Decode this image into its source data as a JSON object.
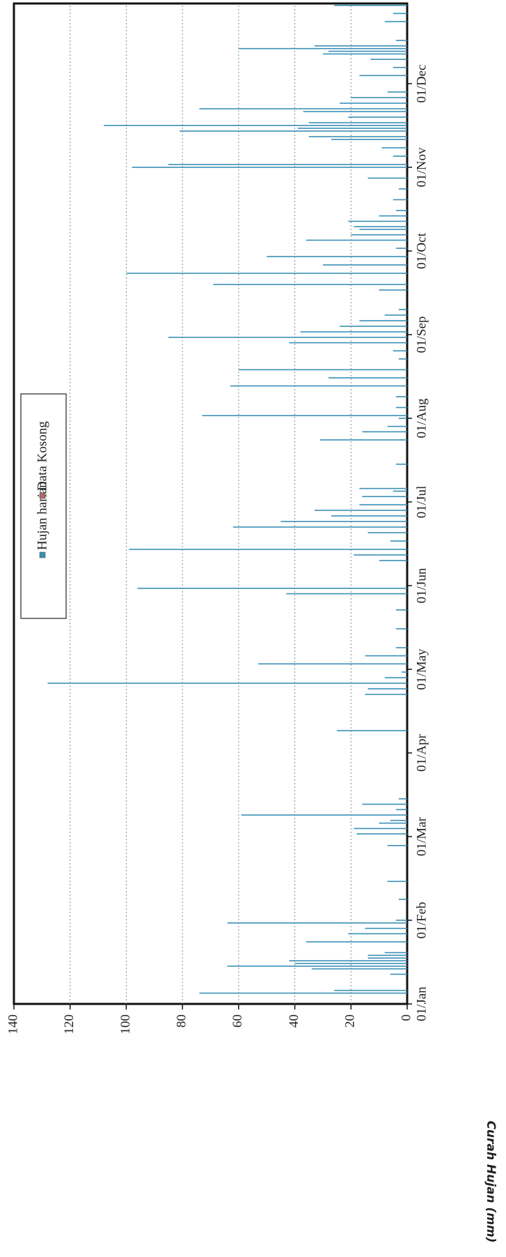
{
  "chart_data": {
    "type": "bar",
    "y_label": "Curah Hujan (mm)",
    "x": [
      "05/Jan",
      "06/Jan",
      "12/Jan",
      "14/Jan",
      "15/Jan",
      "16/Jan",
      "17/Jan",
      "18/Jan",
      "19/Jan",
      "20/Jan",
      "24/Jan",
      "27/Jan",
      "29/Jan",
      "31/Jan",
      "01/Feb",
      "08/Feb",
      "14/Feb",
      "26/Feb",
      "02/Mar",
      "04/Mar",
      "06/Mar",
      "07/Mar",
      "09/Mar",
      "11/Mar",
      "13/Mar",
      "15/Mar",
      "09/Apr",
      "22/Apr",
      "24/Apr",
      "26/Apr",
      "28/Apr",
      "30/Apr",
      "03/May",
      "06/May",
      "09/May",
      "16/May",
      "23/May",
      "29/May",
      "31/May",
      "10/Jun",
      "12/Jun",
      "14/Jun",
      "17/Jun",
      "20/Jun",
      "22/Jun",
      "24/Jun",
      "26/Jun",
      "28/Jun",
      "30/Jun",
      "03/Jul",
      "05/Jul",
      "06/Jul",
      "15/Jul",
      "24/Jul",
      "27/Jul",
      "29/Jul",
      "01/Aug",
      "02/Aug",
      "05/Aug",
      "09/Aug",
      "13/Aug",
      "16/Aug",
      "19/Aug",
      "23/Aug",
      "26/Aug",
      "29/Aug",
      "31/Aug",
      "02/Sep",
      "04/Sep",
      "06/Sep",
      "08/Sep",
      "10/Sep",
      "17/Sep",
      "19/Sep",
      "23/Sep",
      "26/Sep",
      "29/Sep",
      "02/Oct",
      "05/Oct",
      "07/Oct",
      "09/Oct",
      "10/Oct",
      "12/Oct",
      "14/Oct",
      "16/Oct",
      "20/Oct",
      "24/Oct",
      "28/Oct",
      "01/Nov",
      "02/Nov",
      "05/Nov",
      "08/Nov",
      "11/Nov",
      "12/Nov",
      "14/Nov",
      "15/Nov",
      "16/Nov",
      "17/Nov",
      "19/Nov",
      "21/Nov",
      "22/Nov",
      "24/Nov",
      "26/Nov",
      "28/Nov",
      "04/Dec",
      "07/Dec",
      "10/Dec",
      "12/Dec",
      "13/Dec",
      "14/Dec",
      "15/Dec",
      "17/Dec",
      "24/Dec",
      "27/Dec",
      "30/Dec"
    ],
    "series": [
      {
        "name": "Hujan harian",
        "color": "#3a8fb7",
        "values": [
          74,
          26,
          6,
          34,
          64,
          40,
          42,
          14,
          14,
          8,
          36,
          21,
          15,
          64,
          4,
          3,
          7,
          7,
          18,
          19,
          10,
          6,
          59,
          4,
          16,
          3,
          25,
          15,
          14,
          128,
          8,
          2,
          53,
          15,
          4,
          4,
          4,
          43,
          96,
          10,
          19,
          99,
          6,
          14,
          62,
          45,
          27,
          33,
          17,
          16,
          5,
          17,
          4,
          31,
          16,
          7,
          3,
          73,
          4,
          4,
          63,
          28,
          60,
          3,
          5,
          42,
          85,
          38,
          24,
          17,
          8,
          3,
          10,
          69,
          100,
          30,
          50,
          4,
          36,
          20,
          17,
          19,
          21,
          10,
          4,
          5,
          3,
          14,
          98,
          85,
          5,
          9,
          27,
          35,
          81,
          39,
          108,
          35,
          21,
          37,
          74,
          24,
          20,
          7,
          17,
          5,
          13,
          30,
          28,
          60,
          33,
          4,
          8,
          5,
          26
        ]
      },
      {
        "name": "Data Kosong",
        "color": "#b06a6a",
        "values": [
          null,
          null,
          null,
          null,
          null,
          null,
          null,
          null,
          null,
          null,
          null,
          null,
          null,
          null,
          null,
          null,
          null,
          null,
          null,
          null,
          null,
          null,
          null,
          null,
          null,
          null,
          null,
          null,
          null,
          null,
          null,
          null,
          null,
          null,
          null,
          null,
          null,
          null,
          null,
          null,
          null,
          null,
          null,
          null,
          null,
          null,
          null,
          null,
          null,
          null,
          null,
          null,
          null,
          null,
          null,
          null,
          null,
          null,
          null,
          null,
          null,
          null,
          null,
          null,
          null,
          null,
          null,
          null,
          null,
          null,
          null,
          null,
          null,
          null,
          null,
          null,
          null,
          null,
          null,
          null,
          null,
          null,
          null,
          null,
          null,
          null,
          null,
          null,
          null,
          null,
          null,
          null,
          null,
          null,
          null,
          null,
          null,
          null,
          null,
          null,
          null,
          null,
          null,
          null,
          null,
          null,
          null,
          null,
          null,
          null,
          null,
          null,
          null,
          null,
          null
        ]
      }
    ],
    "xticks": [
      "01/Jan",
      "01/Feb",
      "01/Mar",
      "01/Apr",
      "01/May",
      "01/Jun",
      "01/Jul",
      "01/Aug",
      "01/Sep",
      "01/Oct",
      "01/Nov",
      "01/Dec"
    ],
    "ylim": [
      0,
      140
    ],
    "yticks": [
      0,
      20,
      40,
      60,
      80,
      100,
      120,
      140
    ],
    "grid": true
  }
}
